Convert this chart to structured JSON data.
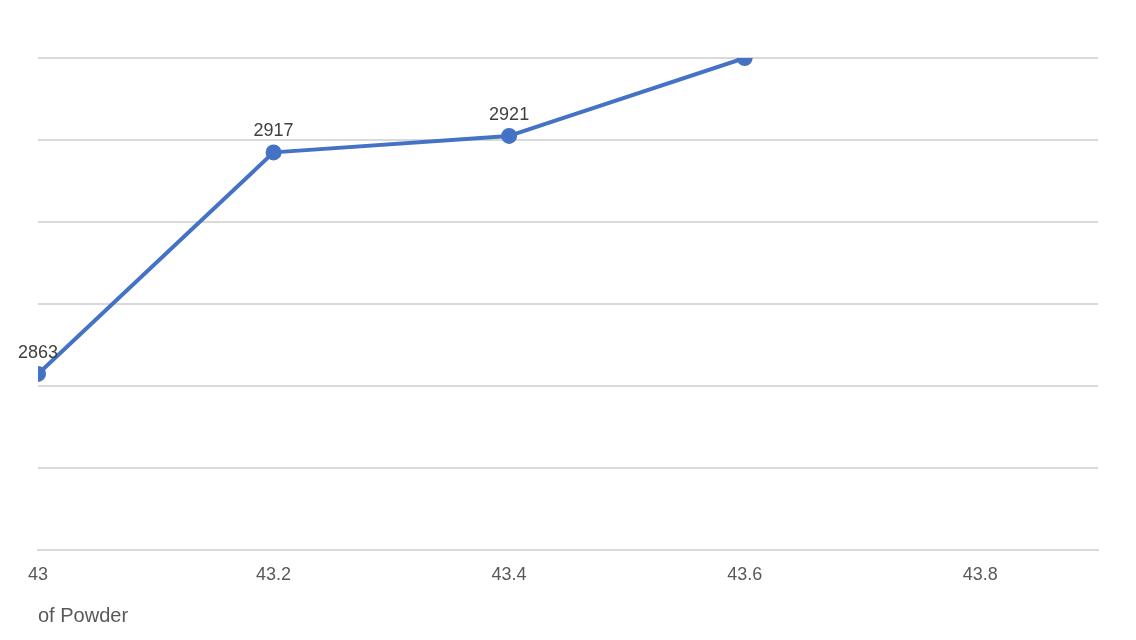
{
  "chart_data": {
    "type": "line",
    "xlabel": "of Powder",
    "x": [
      43,
      43.2,
      43.4,
      43.6
    ],
    "series": [
      {
        "color": "#4472c4",
        "values": [
          2863,
          2917,
          2921,
          2940
        ],
        "value_labels": [
          "2863",
          "2917",
          "2921",
          null
        ]
      }
    ],
    "xlim": [
      43,
      43.9
    ],
    "xticks": [
      43,
      43.2,
      43.4,
      43.6,
      43.8
    ],
    "ylim": [
      2820,
      2940
    ],
    "yticks": [
      {
        "value": 2820,
        "label": null
      },
      {
        "value": 2840,
        "label": null
      },
      {
        "value": 2860,
        "label": null
      },
      {
        "value": 2880,
        "label": null
      },
      {
        "value": 2900,
        "label": null
      },
      {
        "value": 2920,
        "label": null
      },
      {
        "value": 2940,
        "label": null
      }
    ],
    "tick_labels": "x",
    "grid": "y",
    "legend": false,
    "marker": "circle",
    "line_style": "solid"
  }
}
